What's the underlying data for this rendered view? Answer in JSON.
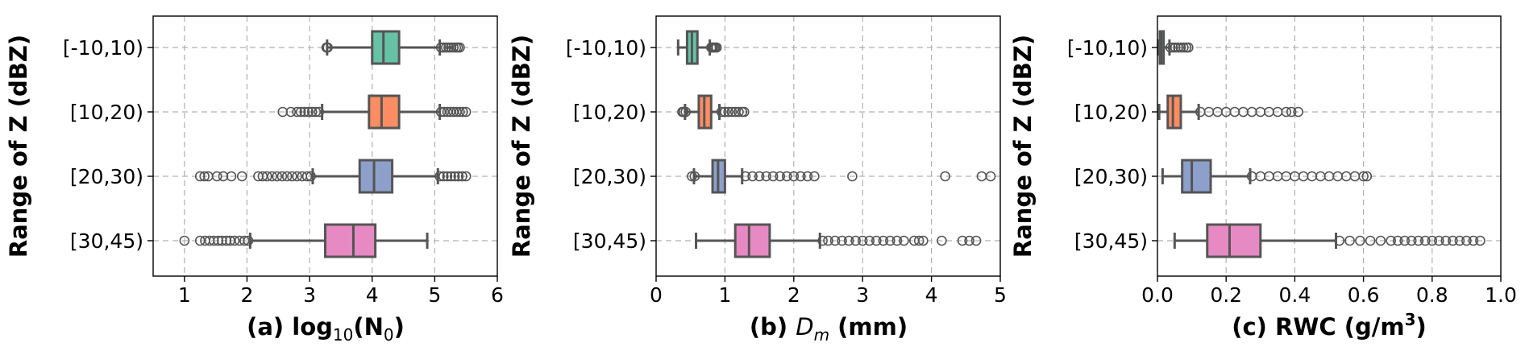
{
  "palette": [
    "#66c2a5",
    "#fc8d62",
    "#8da0cb",
    "#e78ac3"
  ],
  "chart_data": [
    {
      "type": "boxplot",
      "orientation": "horizontal",
      "xlabel_parts": [
        "(a) log",
        "10",
        "(N",
        "0",
        ")"
      ],
      "ylabel": "Range of Z (dBZ)",
      "xlim": [
        0.5,
        6
      ],
      "xticks": [
        1,
        2,
        3,
        4,
        5,
        6
      ],
      "grid": true,
      "categories": [
        "[-10,10)",
        "[10,20)",
        "[20,30)",
        "[30,45)"
      ],
      "boxes": [
        {
          "whislo": 3.28,
          "q1": 4.0,
          "med": 4.18,
          "q3": 4.43,
          "whishi": 5.08,
          "fliers": [
            3.27,
            3.29,
            5.1,
            5.14,
            5.18,
            5.22,
            5.26,
            5.3,
            5.34,
            5.37,
            5.4
          ]
        },
        {
          "whislo": 3.2,
          "q1": 3.95,
          "med": 4.15,
          "q3": 4.43,
          "whishi": 5.08,
          "fliers": [
            2.57,
            2.7,
            2.8,
            2.86,
            2.92,
            2.98,
            3.04,
            3.1,
            3.15,
            5.1,
            5.15,
            5.2,
            5.25,
            5.3,
            5.35,
            5.4,
            5.45,
            5.5
          ]
        },
        {
          "whislo": 3.05,
          "q1": 3.8,
          "med": 4.03,
          "q3": 4.32,
          "whishi": 5.05,
          "fliers": [
            1.25,
            1.32,
            1.38,
            1.52,
            1.62,
            1.75,
            1.92,
            2.18,
            2.25,
            2.32,
            2.4,
            2.48,
            2.56,
            2.64,
            2.72,
            2.8,
            2.88,
            2.96,
            3.02,
            5.08,
            5.14,
            5.2,
            5.26,
            5.32,
            5.38,
            5.44,
            5.5
          ]
        },
        {
          "whislo": 2.05,
          "q1": 3.25,
          "med": 3.7,
          "q3": 4.05,
          "whishi": 4.88,
          "fliers": [
            1.0,
            1.25,
            1.33,
            1.4,
            1.47,
            1.54,
            1.6,
            1.67,
            1.73,
            1.8,
            1.88,
            1.96,
            2.02
          ]
        }
      ]
    },
    {
      "type": "boxplot",
      "orientation": "horizontal",
      "xlabel_parts": [
        "(b) ",
        "D",
        "m",
        " (mm)"
      ],
      "ylabel": "Range of Z (dBZ)",
      "xlim": [
        0,
        5
      ],
      "xticks": [
        0,
        1,
        2,
        3,
        4,
        5
      ],
      "grid": true,
      "categories": [
        "[-10,10)",
        "[10,20)",
        "[20,30)",
        "[30,45)"
      ],
      "boxes": [
        {
          "whislo": 0.32,
          "q1": 0.45,
          "med": 0.52,
          "q3": 0.6,
          "whishi": 0.78,
          "fliers": [
            0.8,
            0.82,
            0.84,
            0.86,
            0.88
          ]
        },
        {
          "whislo": 0.42,
          "q1": 0.62,
          "med": 0.7,
          "q3": 0.8,
          "whishi": 0.92,
          "fliers": [
            0.38,
            0.4,
            0.43,
            0.95,
            1.0,
            1.05,
            1.1,
            1.15,
            1.2,
            1.25,
            1.28
          ]
        },
        {
          "whislo": 0.55,
          "q1": 0.82,
          "med": 0.9,
          "q3": 1.0,
          "whishi": 1.25,
          "fliers": [
            0.52,
            0.56,
            1.3,
            1.4,
            1.5,
            1.6,
            1.7,
            1.8,
            1.9,
            2.0,
            2.1,
            2.2,
            2.3,
            2.85,
            4.2,
            4.73,
            4.86
          ]
        },
        {
          "whislo": 0.58,
          "q1": 1.15,
          "med": 1.35,
          "q3": 1.65,
          "whishi": 2.38,
          "fliers": [
            2.42,
            2.5,
            2.6,
            2.7,
            2.8,
            2.9,
            3.0,
            3.1,
            3.2,
            3.3,
            3.4,
            3.5,
            3.6,
            3.75,
            3.82,
            3.88,
            4.15,
            4.45,
            4.55,
            4.65
          ]
        }
      ]
    },
    {
      "type": "boxplot",
      "orientation": "horizontal",
      "xlabel_parts": [
        "(c) RWC (g/m",
        "3",
        ")"
      ],
      "ylabel": "Range of Z (dBZ)",
      "xlim": [
        0,
        1
      ],
      "xticks": [
        "0.0",
        "0.2",
        "0.4",
        "0.6",
        "0.8",
        "1.0"
      ],
      "grid": true,
      "categories": [
        "[-10,10)",
        "[10,20)",
        "[20,30)",
        "[30,45)"
      ],
      "boxes": [
        {
          "whislo": 0.002,
          "q1": 0.007,
          "med": 0.011,
          "q3": 0.018,
          "whishi": 0.035,
          "fliers": [
            0.038,
            0.045,
            0.052,
            0.06,
            0.068,
            0.076,
            0.084,
            0.09
          ]
        },
        {
          "whislo": 0.005,
          "q1": 0.03,
          "med": 0.045,
          "q3": 0.068,
          "whishi": 0.12,
          "fliers": [
            0.125,
            0.15,
            0.175,
            0.2,
            0.225,
            0.25,
            0.275,
            0.3,
            0.325,
            0.35,
            0.375,
            0.39,
            0.41
          ]
        },
        {
          "whislo": 0.015,
          "q1": 0.072,
          "med": 0.1,
          "q3": 0.155,
          "whishi": 0.27,
          "fliers": [
            0.275,
            0.3,
            0.325,
            0.35,
            0.375,
            0.4,
            0.425,
            0.45,
            0.475,
            0.5,
            0.525,
            0.55,
            0.575,
            0.6,
            0.61
          ]
        },
        {
          "whislo": 0.05,
          "q1": 0.145,
          "med": 0.21,
          "q3": 0.3,
          "whishi": 0.52,
          "fliers": [
            0.53,
            0.56,
            0.59,
            0.62,
            0.65,
            0.68,
            0.7,
            0.72,
            0.74,
            0.76,
            0.78,
            0.8,
            0.82,
            0.84,
            0.86,
            0.88,
            0.9,
            0.92,
            0.94
          ]
        }
      ]
    }
  ]
}
